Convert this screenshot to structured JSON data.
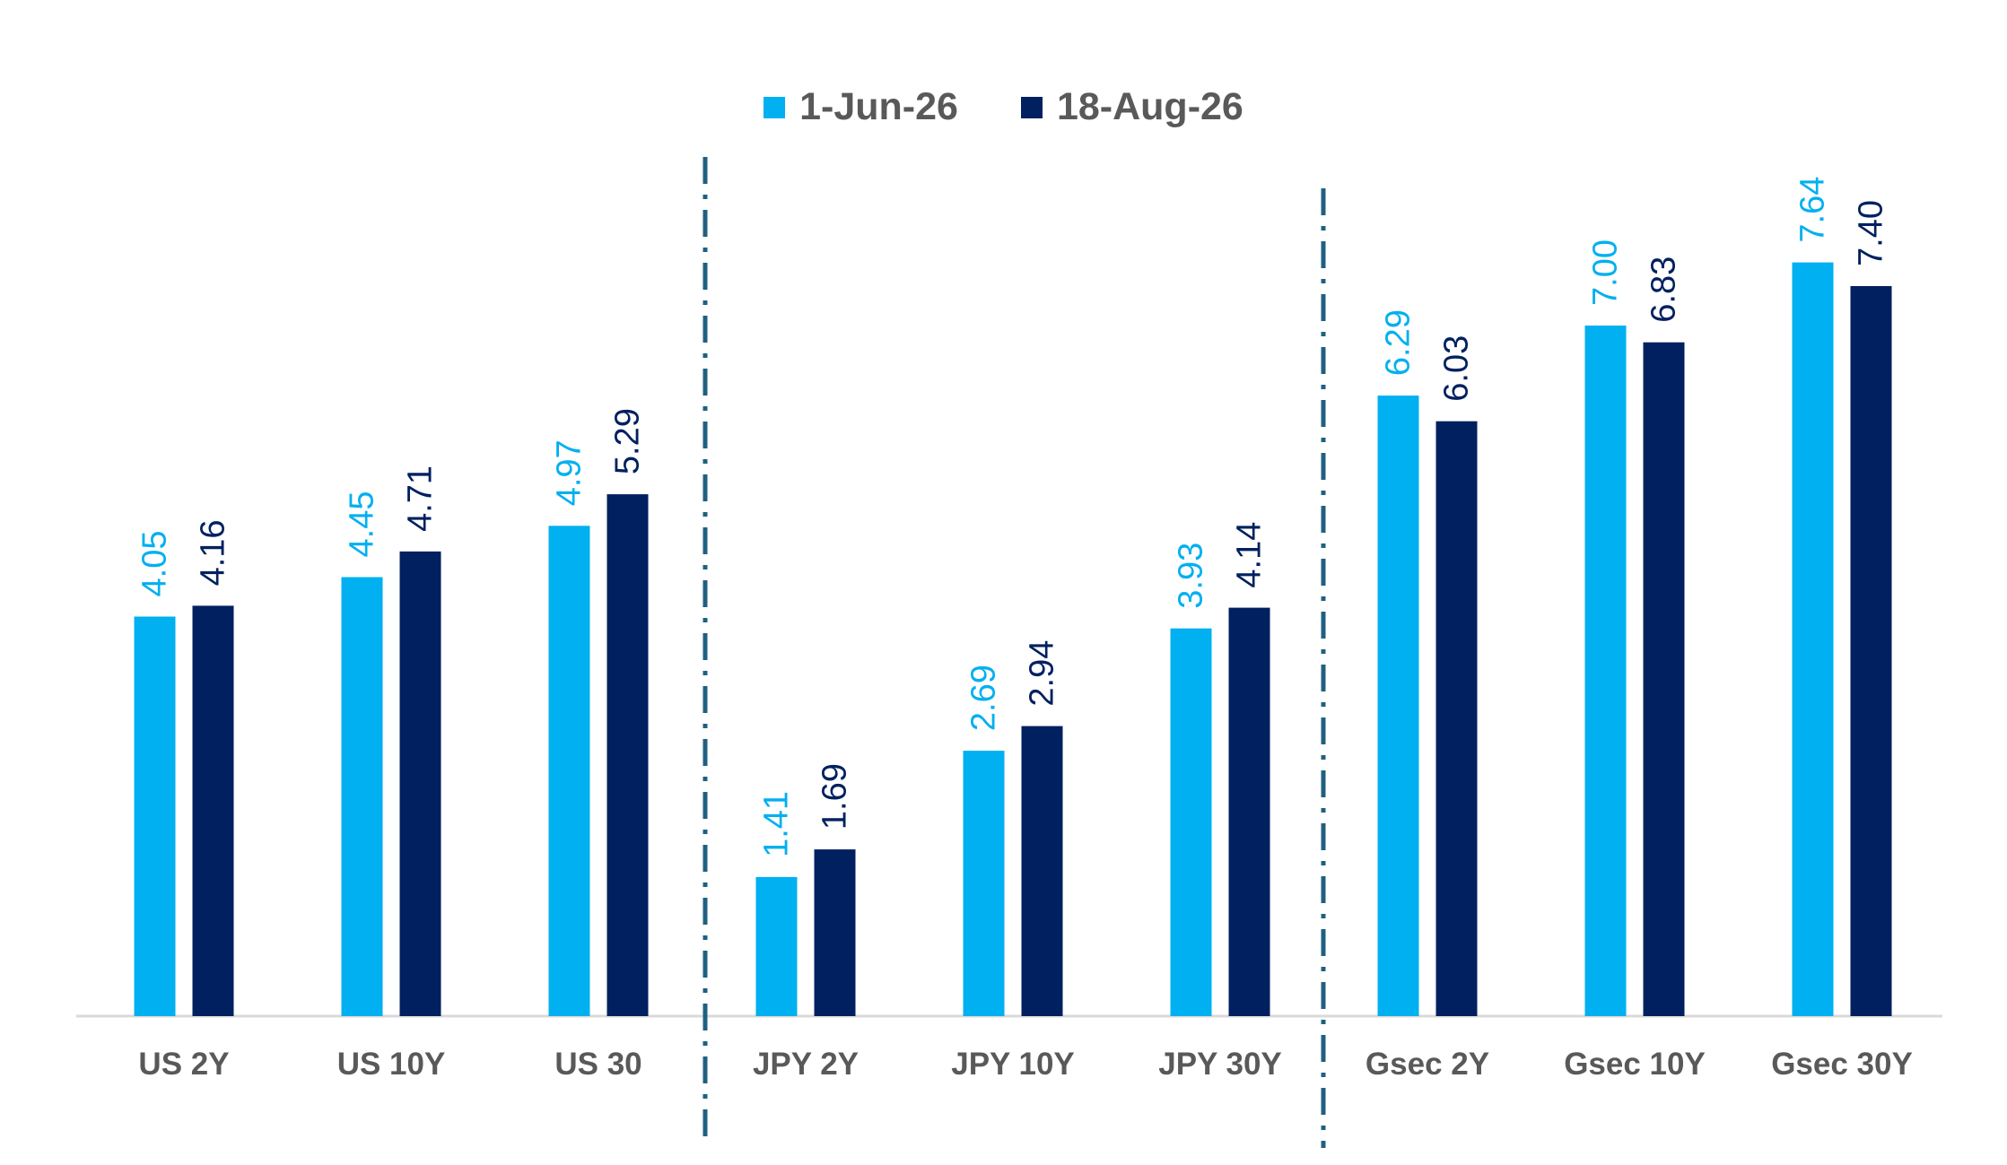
{
  "chart_data": {
    "type": "bar",
    "categories": [
      "US 2Y",
      "US 10Y",
      "US 30",
      "JPY 2Y",
      "JPY 10Y",
      "JPY 30Y",
      "Gsec 2Y",
      "Gsec 10Y",
      "Gsec 30Y"
    ],
    "series": [
      {
        "name": "1-Jun-26",
        "color": "#00B0F0",
        "values": [
          4.05,
          4.45,
          4.97,
          1.41,
          2.69,
          3.93,
          6.29,
          7.0,
          7.64
        ],
        "labels": [
          "4.05",
          "4.45",
          "4.97",
          "1.41",
          "2.69",
          "3.93",
          "6.29",
          "7.00",
          "7.64"
        ]
      },
      {
        "name": "18-Aug-26",
        "color": "#002060",
        "values": [
          4.16,
          4.71,
          5.29,
          1.69,
          2.94,
          4.14,
          6.03,
          6.83,
          7.4
        ],
        "labels": [
          "4.16",
          "4.71",
          "5.29",
          "1.69",
          "2.94",
          "4.14",
          "6.03",
          "6.83",
          "7.40"
        ]
      }
    ],
    "ylim": [
      0,
      8
    ],
    "legend": "top-center",
    "grid": false,
    "group_separators": "dash-dot lines after US 30 and JPY 30Y",
    "colors": {
      "axis": "#D9D9D9",
      "separator": "#1F6080",
      "category_text": "#595959"
    }
  }
}
